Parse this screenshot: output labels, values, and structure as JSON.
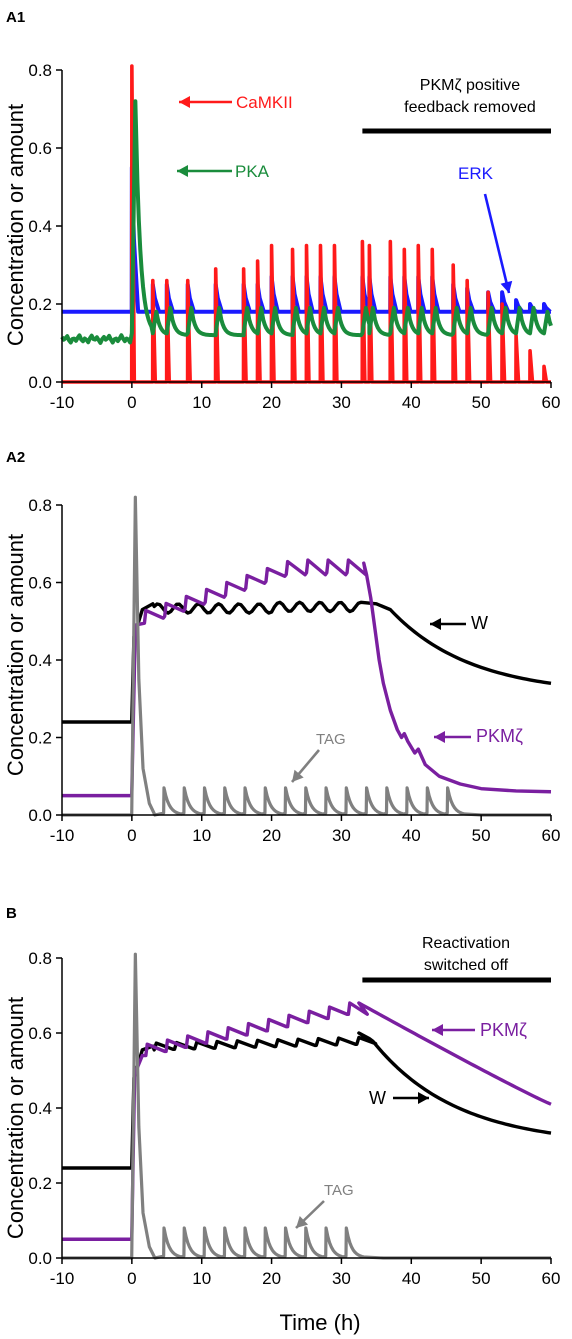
{
  "xlabel": "Time (h)",
  "colors": {
    "CaMKII": "#ff1a1a",
    "PKA": "#1a8c3c",
    "ERK": "#1a1aff",
    "W": "#000000",
    "PKMzeta": "#7a1fa0",
    "TAG": "#808080",
    "axis": "#000000"
  },
  "chart_data": [
    {
      "panel": "A1",
      "type": "line",
      "ylabel": "Concentration or amount",
      "xlim": [
        -10,
        60
      ],
      "ylim": [
        0,
        0.8
      ],
      "xticks": [
        -10,
        0,
        10,
        20,
        30,
        40,
        50,
        60
      ],
      "yticks": [
        0.0,
        0.2,
        0.4,
        0.6,
        0.8
      ],
      "bar": {
        "label_lines": [
          "PKMζ positive",
          "feedback removed"
        ],
        "x_range": [
          33,
          60
        ]
      },
      "stimulus_times": [
        0,
        3,
        5,
        8,
        12,
        16,
        18,
        20,
        23,
        25,
        27,
        29,
        33,
        34,
        37,
        39,
        41,
        43,
        46,
        48,
        51,
        53,
        55,
        57,
        59
      ],
      "series": [
        {
          "name": "CaMKII",
          "key": "CaMKII",
          "legend": "CaMKII",
          "peaks": [
            0.81,
            0.26,
            0.26,
            0.26,
            0.29,
            0.29,
            0.31,
            0.35,
            0.34,
            0.35,
            0.35,
            0.35,
            0.36,
            0.35,
            0.36,
            0.34,
            0.35,
            0.34,
            0.3,
            0.26,
            0.23,
            0.2,
            0.12,
            0.08,
            0.04
          ],
          "baseline": 0.0
        },
        {
          "name": "ERK",
          "key": "ERK",
          "legend": "ERK",
          "baseline": 0.18,
          "peaks": [
            0.55,
            0.25,
            0.25,
            0.25,
            0.25,
            0.25,
            0.25,
            0.27,
            0.27,
            0.27,
            0.27,
            0.27,
            0.27,
            0.27,
            0.27,
            0.27,
            0.27,
            0.27,
            0.25,
            0.24,
            0.23,
            0.23,
            0.21,
            0.2,
            0.2
          ]
        },
        {
          "name": "PKA",
          "key": "PKA",
          "legend": "PKA",
          "baseline": 0.11,
          "peaks": [
            0.72,
            0.18,
            0.19,
            0.19,
            0.19,
            0.19,
            0.19,
            0.19,
            0.19,
            0.19,
            0.19,
            0.19,
            0.19,
            0.19,
            0.19,
            0.19,
            0.19,
            0.19,
            0.19,
            0.19,
            0.19,
            0.19,
            0.19,
            0.19,
            0.18
          ],
          "floor": 0.12
        }
      ]
    },
    {
      "panel": "A2",
      "type": "line",
      "ylabel": "Concentration or amount",
      "xlim": [
        -10,
        60
      ],
      "ylim": [
        0,
        0.8
      ],
      "xticks": [
        -10,
        0,
        10,
        20,
        30,
        40,
        50,
        60
      ],
      "yticks": [
        0.0,
        0.2,
        0.4,
        0.6,
        0.8
      ],
      "series": [
        {
          "name": "W",
          "key": "W",
          "legend": "W",
          "start": 0.24,
          "plateau": [
            0.54,
            0.55
          ],
          "end": 0.31
        },
        {
          "name": "PKMζ",
          "key": "PKMzeta",
          "legend": "PKMζ",
          "start": 0.05,
          "max": 0.65,
          "end": 0.06
        },
        {
          "name": "TAG",
          "key": "TAG",
          "legend": "TAG",
          "start": 0.0,
          "max": 0.82,
          "pulse_peak": 0.07
        }
      ]
    },
    {
      "panel": "B",
      "type": "line",
      "ylabel": "Concentration or amount",
      "xlim": [
        -10,
        60
      ],
      "ylim": [
        0,
        0.8
      ],
      "xticks": [
        -10,
        0,
        10,
        20,
        30,
        40,
        50,
        60
      ],
      "yticks": [
        0.0,
        0.2,
        0.4,
        0.6,
        0.8
      ],
      "bar": {
        "label_lines": [
          "Reactivation",
          "switched off"
        ],
        "x_range": [
          33,
          60
        ]
      },
      "series": [
        {
          "name": "W",
          "key": "W",
          "legend": "W",
          "start": 0.24,
          "plateau": [
            0.56,
            0.6
          ],
          "end": 0.32
        },
        {
          "name": "PKMζ",
          "key": "PKMzeta",
          "legend": "PKMζ",
          "start": 0.05,
          "max": 0.68,
          "end": 0.41
        },
        {
          "name": "TAG",
          "key": "TAG",
          "legend": "TAG",
          "start": 0.0,
          "max": 0.81,
          "pulse_peak": 0.08
        }
      ]
    }
  ],
  "panel_labels": [
    "A1",
    "A2",
    "B"
  ]
}
